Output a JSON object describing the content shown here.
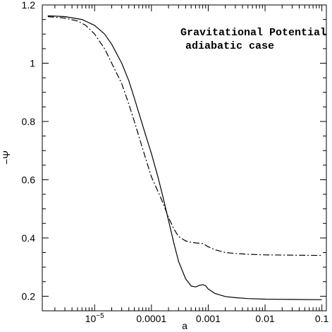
{
  "chart_data": {
    "type": "line",
    "title": "",
    "xlabel": "a",
    "ylabel": "−Ψ",
    "xscale": "log",
    "xlim": [
      1.2e-06,
      0.12
    ],
    "ylim": [
      0.15,
      1.2
    ],
    "grid": false,
    "x_ticks": [
      {
        "value": 1e-05,
        "label": "10",
        "sup": "−5"
      },
      {
        "value": 0.0001,
        "label": "0.0001"
      },
      {
        "value": 0.001,
        "label": "0.001"
      },
      {
        "value": 0.01,
        "label": "0.01"
      },
      {
        "value": 0.1,
        "label": "0.1"
      }
    ],
    "y_ticks": [
      {
        "value": 0.2,
        "label": "0.2"
      },
      {
        "value": 0.4,
        "label": "0.4"
      },
      {
        "value": 0.6,
        "label": "0.6"
      },
      {
        "value": 0.8,
        "label": "0.8"
      },
      {
        "value": 1.0,
        "label": "1"
      },
      {
        "value": 1.2,
        "label": "1.2"
      }
    ],
    "annotations": [
      "Gravitational Potential",
      "adiabatic case"
    ],
    "series": [
      {
        "style": "solid",
        "points": [
          [
            1.5e-06,
            1.163
          ],
          [
            3e-06,
            1.16
          ],
          [
            6e-06,
            1.15
          ],
          [
            1e-05,
            1.13
          ],
          [
            1.5e-05,
            1.1
          ],
          [
            2e-05,
            1.065
          ],
          [
            3e-05,
            1.0
          ],
          [
            4e-05,
            0.94
          ],
          [
            5e-05,
            0.88
          ],
          [
            6e-05,
            0.83
          ],
          [
            8e-05,
            0.75
          ],
          [
            0.0001,
            0.69
          ],
          [
            0.00013,
            0.61
          ],
          [
            0.00016,
            0.54
          ],
          [
            0.0002,
            0.46
          ],
          [
            0.00025,
            0.38
          ],
          [
            0.0003,
            0.32
          ],
          [
            0.0004,
            0.26
          ],
          [
            0.0005,
            0.235
          ],
          [
            0.0006,
            0.232
          ],
          [
            0.0007,
            0.237
          ],
          [
            0.0008,
            0.24
          ],
          [
            0.0009,
            0.236
          ],
          [
            0.001,
            0.225
          ],
          [
            0.0013,
            0.21
          ],
          [
            0.002,
            0.199
          ],
          [
            0.003,
            0.195
          ],
          [
            0.005,
            0.192
          ],
          [
            0.01,
            0.19
          ],
          [
            0.03,
            0.189
          ],
          [
            0.1,
            0.188
          ]
        ]
      },
      {
        "style": "dash-dot",
        "points": [
          [
            1.5e-06,
            1.16
          ],
          [
            3e-06,
            1.155
          ],
          [
            5e-06,
            1.145
          ],
          [
            7e-06,
            1.13
          ],
          [
            1e-05,
            1.1
          ],
          [
            1.5e-05,
            1.05
          ],
          [
            2e-05,
            1.0
          ],
          [
            3e-05,
            0.93
          ],
          [
            4e-05,
            0.86
          ],
          [
            5e-05,
            0.8
          ],
          [
            6e-05,
            0.75
          ],
          [
            8e-05,
            0.67
          ],
          [
            0.0001,
            0.61
          ],
          [
            0.00013,
            0.56
          ],
          [
            0.00016,
            0.52
          ],
          [
            0.0002,
            0.47
          ],
          [
            0.00025,
            0.43
          ],
          [
            0.0003,
            0.405
          ],
          [
            0.0004,
            0.39
          ],
          [
            0.0005,
            0.385
          ],
          [
            0.0006,
            0.383
          ],
          [
            0.0007,
            0.382
          ],
          [
            0.0008,
            0.381
          ],
          [
            0.001,
            0.37
          ],
          [
            0.0013,
            0.36
          ],
          [
            0.002,
            0.35
          ],
          [
            0.003,
            0.347
          ],
          [
            0.005,
            0.344
          ],
          [
            0.01,
            0.342
          ],
          [
            0.03,
            0.341
          ],
          [
            0.1,
            0.34
          ]
        ]
      }
    ]
  }
}
